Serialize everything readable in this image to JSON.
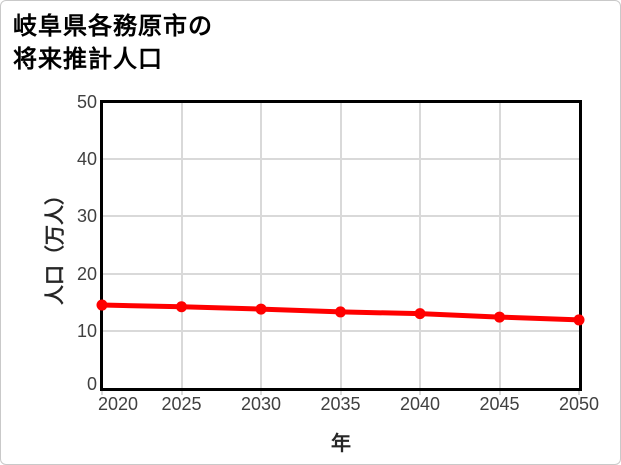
{
  "window": {
    "background": "#ffffff",
    "border_color": "#c9c9c9"
  },
  "title": {
    "line1": "岐阜県各務原市の",
    "line2": "将来推計人口"
  },
  "chart_data": {
    "type": "line",
    "title": "岐阜県各務原市の将来推計人口",
    "x": [
      2020,
      2025,
      2030,
      2035,
      2040,
      2045,
      2050
    ],
    "values": [
      14.5,
      14.2,
      13.8,
      13.3,
      13.0,
      12.4,
      11.9
    ],
    "series_unit": "万人",
    "xlabel": "年",
    "ylabel": "人口（万人）",
    "xlim": [
      2020,
      2050
    ],
    "ylim": [
      0,
      50
    ],
    "y_ticks": [
      0,
      10,
      20,
      30,
      40,
      50
    ],
    "x_tick_labels": [
      "2020",
      "2025",
      "2030",
      "2035",
      "2040",
      "2045",
      "2050"
    ],
    "y_tick_labels": [
      "0",
      "10",
      "20",
      "30",
      "40",
      "50"
    ],
    "grid": true,
    "legend": "none",
    "line_color": "#ff0000",
    "marker": "circle",
    "grid_color": "#d9d9d9",
    "plot_border_color": "#000000",
    "tick_label_color": "#404040"
  }
}
